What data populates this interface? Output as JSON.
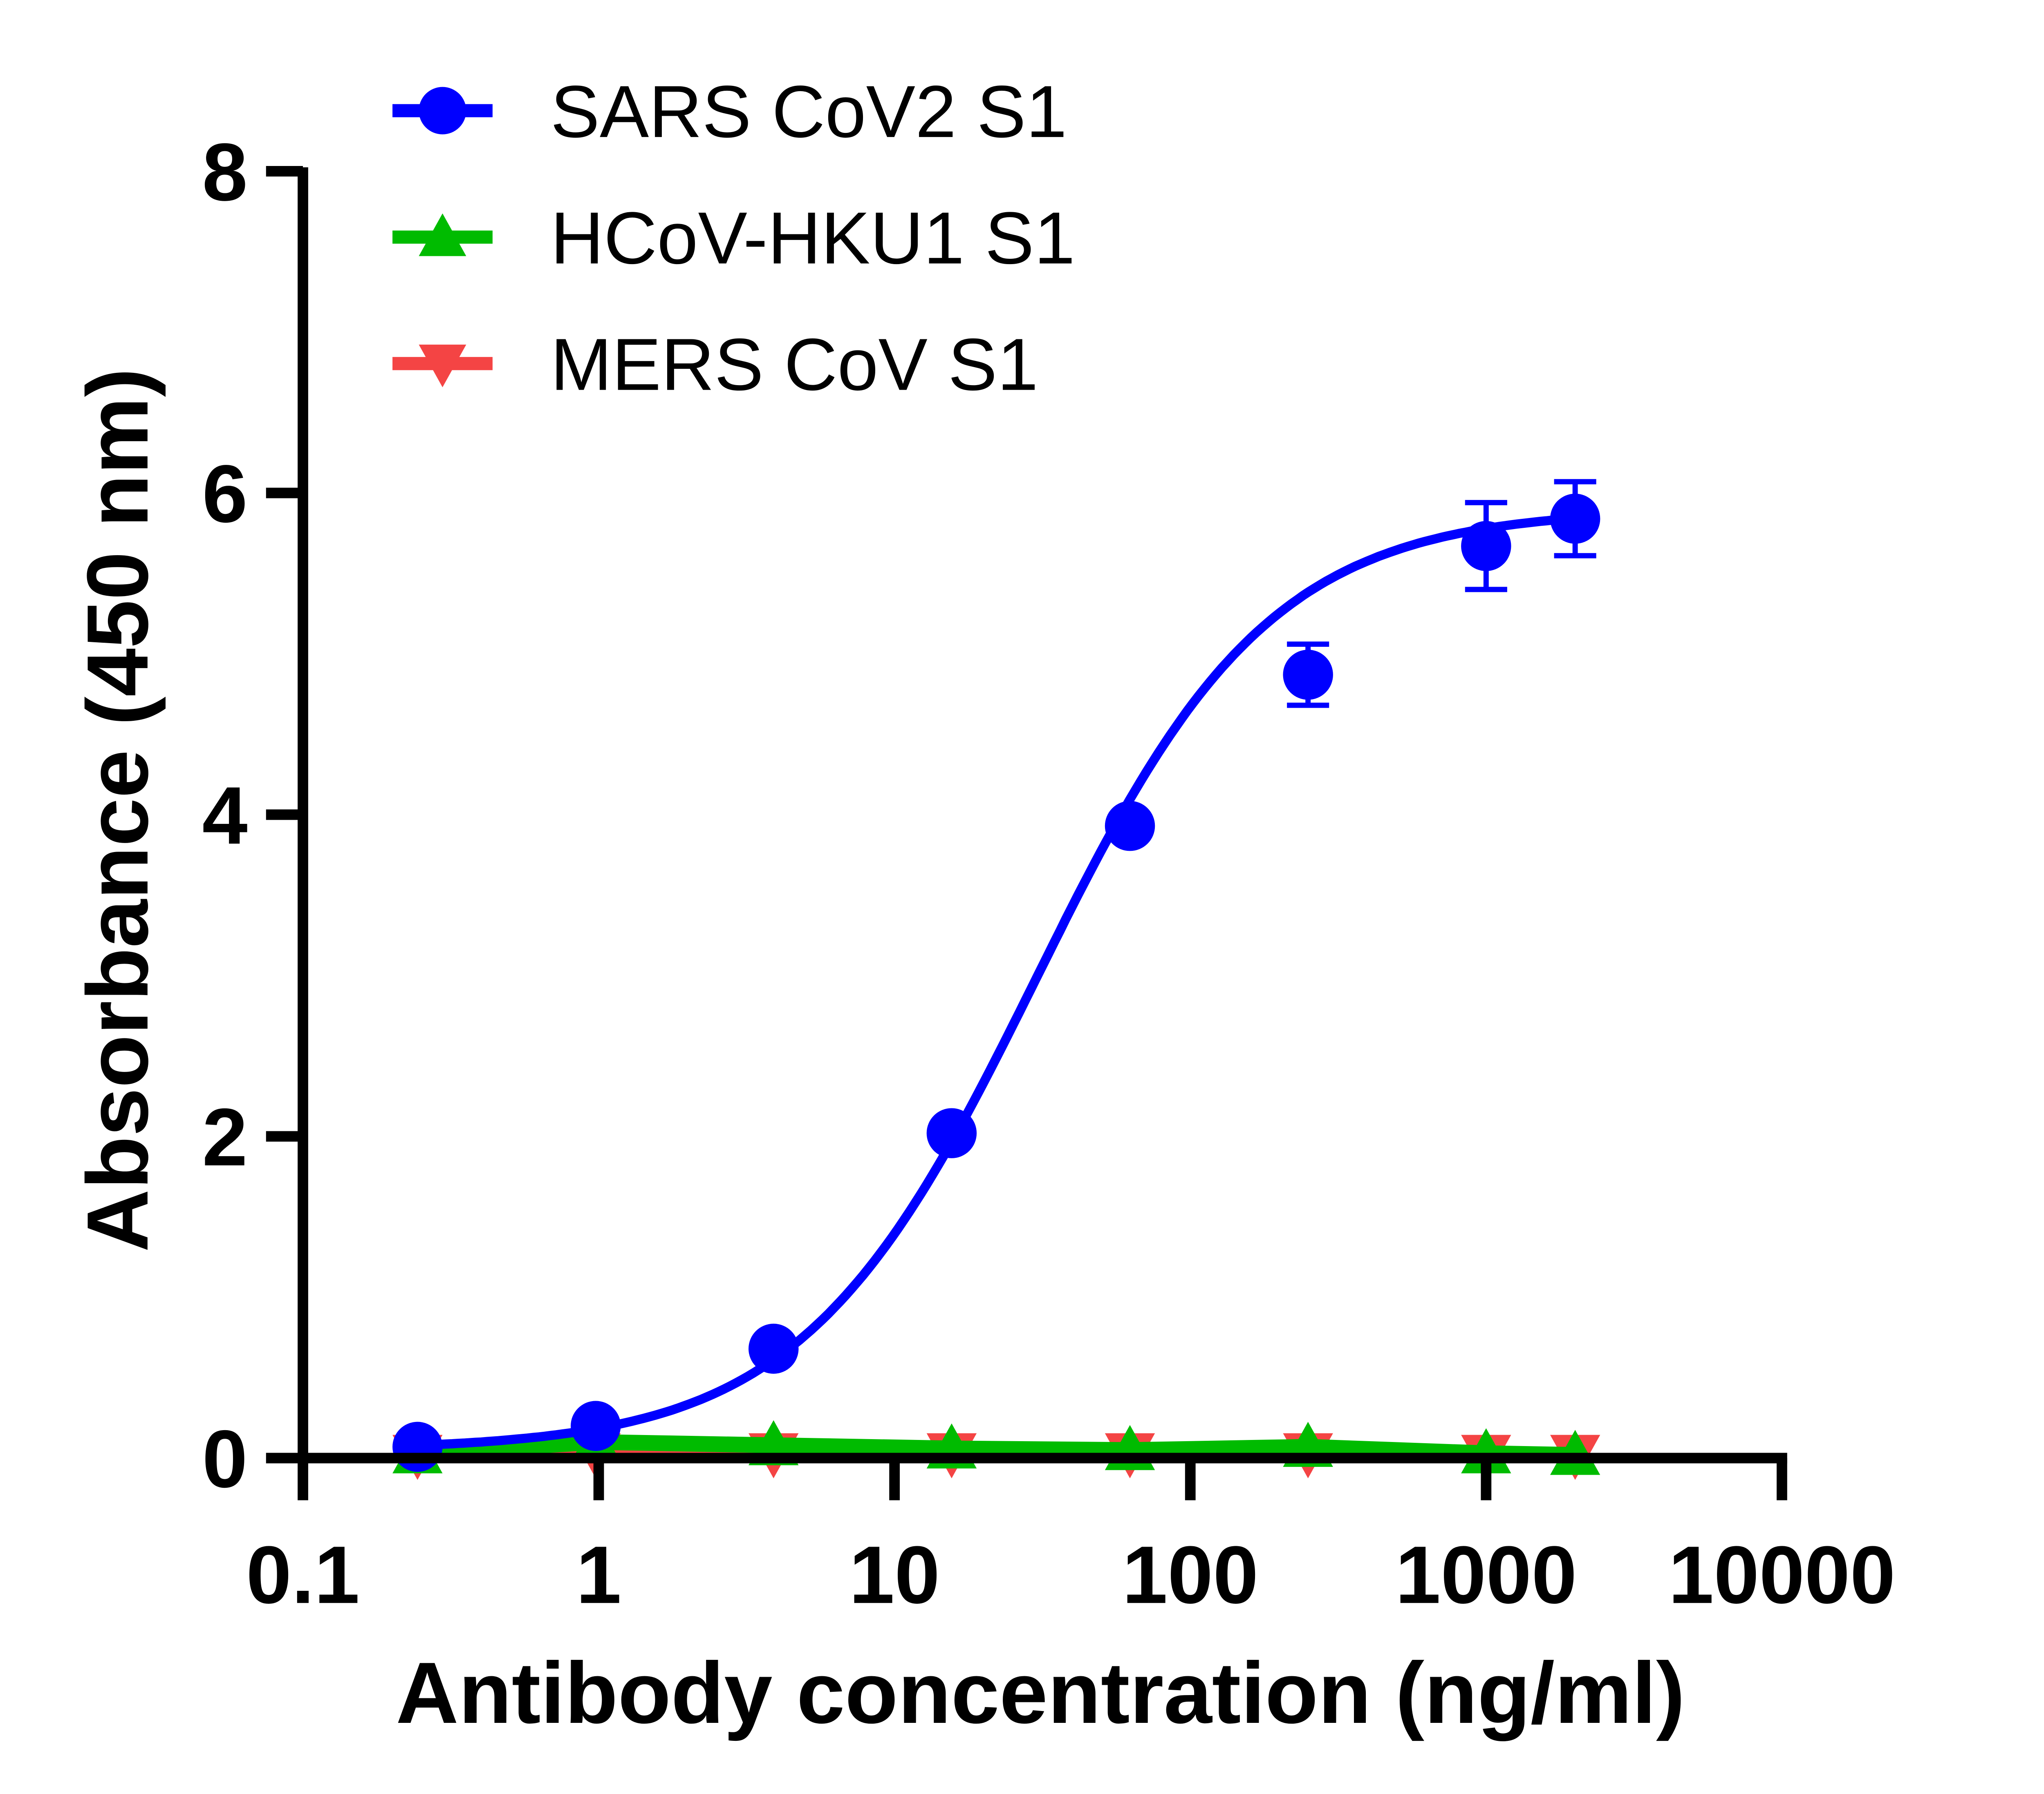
{
  "chart_data": {
    "type": "scatter",
    "xlabel": "Antibody concentration (ng/ml)",
    "ylabel": "Absorbance (450 nm)",
    "xscale": "log",
    "xlim": [
      0.1,
      10000
    ],
    "ylim": [
      0,
      8
    ],
    "xticks": [
      "0.1",
      "1",
      "10",
      "100",
      "1000",
      "10000"
    ],
    "xtick_values": [
      0.1,
      1,
      10,
      100,
      1000,
      10000
    ],
    "yticks": [
      "0",
      "2",
      "4",
      "6",
      "8"
    ],
    "ytick_values": [
      0,
      2,
      4,
      6,
      8
    ],
    "grid": false,
    "legend_position": "top-left",
    "x": [
      0.244,
      0.977,
      3.9,
      15.6,
      62.5,
      250,
      1000,
      2000
    ],
    "series": [
      {
        "name": "SARS CoV2 S1",
        "color": "#0000ff",
        "marker": "circle",
        "values": [
          0.07,
          0.2,
          0.68,
          2.02,
          3.93,
          4.87,
          5.67,
          5.84
        ],
        "errors": [
          0,
          0,
          0,
          0,
          0,
          0.19,
          0.27,
          0.23
        ],
        "fit": {
          "model": "4PL",
          "bottom": 0.05,
          "top": 5.9,
          "ec50": 30,
          "hill": 1.1
        }
      },
      {
        "name": "HCoV-HKU1 S1",
        "color": "#00bb00",
        "marker": "triangle-up",
        "values": [
          0.03,
          0.1,
          0.08,
          0.06,
          0.05,
          0.07,
          0.03,
          0.02
        ]
      },
      {
        "name": "MERS CoV S1",
        "color": "#f44444",
        "marker": "triangle-down",
        "values": [
          0.02,
          0.03,
          0.03,
          0.03,
          0.03,
          0.03,
          0.02,
          0.02
        ]
      }
    ]
  }
}
